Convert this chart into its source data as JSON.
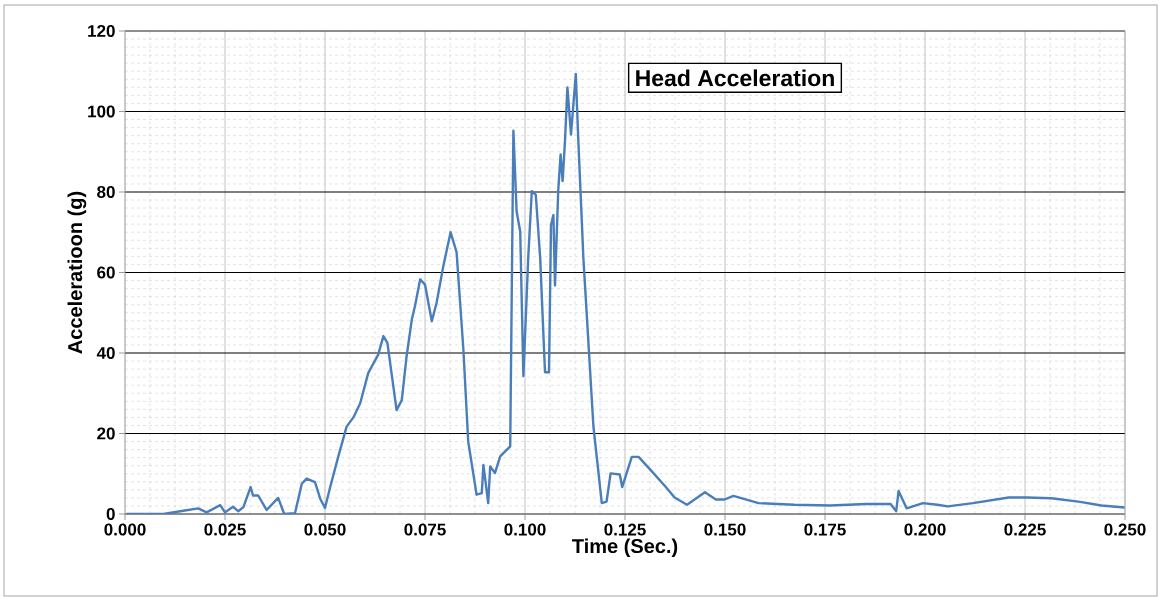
{
  "chart_data": {
    "type": "line",
    "title": "Head Acceleration",
    "xlabel": "Time (Sec.)",
    "ylabel": "Acceleratioon (g)",
    "x": [
      0.0004,
      0.0096,
      0.0146,
      0.0183,
      0.0204,
      0.0238,
      0.025,
      0.027,
      0.0283,
      0.0296,
      0.0314,
      0.032,
      0.0333,
      0.0354,
      0.0383,
      0.0398,
      0.0425,
      0.0442,
      0.0454,
      0.0475,
      0.0488,
      0.05,
      0.0513,
      0.0533,
      0.0554,
      0.0571,
      0.0588,
      0.0608,
      0.0633,
      0.0646,
      0.0656,
      0.0679,
      0.0692,
      0.0704,
      0.0717,
      0.0725,
      0.0738,
      0.075,
      0.0767,
      0.0779,
      0.0796,
      0.0814,
      0.0829,
      0.0846,
      0.0858,
      0.0879,
      0.0892,
      0.0896,
      0.0908,
      0.0913,
      0.0925,
      0.0938,
      0.0963,
      0.0971,
      0.0979,
      0.0988,
      0.0996,
      0.1008,
      0.1017,
      0.1027,
      0.1038,
      0.105,
      0.106,
      0.1065,
      0.1071,
      0.1075,
      0.1083,
      0.1089,
      0.1094,
      0.11,
      0.1106,
      0.1115,
      0.1127,
      0.1133,
      0.1146,
      0.1171,
      0.1192,
      0.1204,
      0.1214,
      0.1237,
      0.1243,
      0.1267,
      0.1284,
      0.1316,
      0.1352,
      0.1374,
      0.1405,
      0.145,
      0.1477,
      0.1499,
      0.1521,
      0.1584,
      0.1673,
      0.1763,
      0.1852,
      0.1914,
      0.1928,
      0.1934,
      0.1954,
      0.1995,
      0.2031,
      0.2057,
      0.212,
      0.2209,
      0.2254,
      0.2316,
      0.2388,
      0.2441,
      0.2499
    ],
    "series": [
      {
        "color": "#4a7ebb",
        "values": [
          0,
          0,
          0.8,
          1.4,
          0.4,
          2.2,
          0.4,
          1.8,
          0.7,
          1.7,
          6.7,
          4.6,
          4.6,
          1,
          4,
          0,
          0.2,
          7.5,
          8.8,
          7.9,
          3.8,
          1.5,
          6.7,
          14.2,
          21.7,
          24,
          27.5,
          35,
          39.6,
          44.2,
          42.5,
          25.8,
          28.3,
          39.2,
          48.3,
          51.7,
          58.3,
          57,
          47.9,
          52.5,
          61.7,
          70,
          65,
          40.8,
          18,
          4.8,
          5.2,
          12.2,
          2.7,
          11.8,
          10.2,
          14.3,
          16.8,
          95.2,
          75.2,
          70.2,
          34.3,
          63.5,
          80.2,
          79.3,
          63.5,
          35.2,
          35.2,
          71.8,
          74.3,
          56.8,
          80.2,
          89.3,
          82.7,
          92.7,
          106,
          94.3,
          109.3,
          93.5,
          63.5,
          21.8,
          2.7,
          3.1,
          10.1,
          9.8,
          6.7,
          14.2,
          14.2,
          10.7,
          6.7,
          4.1,
          2.3,
          5.4,
          3.6,
          3.6,
          4.5,
          2.7,
          2.3,
          2.1,
          2.5,
          2.5,
          0.7,
          5.7,
          1.4,
          2.7,
          2.3,
          1.9,
          2.7,
          4.1,
          4.1,
          3.9,
          3,
          2.1,
          1.6
        ]
      }
    ],
    "xlim": [
      0,
      0.25
    ],
    "ylim": [
      0,
      120
    ],
    "xticks": [
      {
        "value": 0,
        "label": "0.000"
      },
      {
        "value": 0.025,
        "label": "0.025"
      },
      {
        "value": 0.05,
        "label": "0.050"
      },
      {
        "value": 0.075,
        "label": "0.075"
      },
      {
        "value": 0.1,
        "label": "0.100"
      },
      {
        "value": 0.125,
        "label": "0.125"
      },
      {
        "value": 0.15,
        "label": "0.150"
      },
      {
        "value": 0.175,
        "label": "0.175"
      },
      {
        "value": 0.2,
        "label": "0.200"
      },
      {
        "value": 0.225,
        "label": "0.225"
      },
      {
        "value": 0.25,
        "label": "0.250"
      }
    ],
    "yticks": [
      0,
      20,
      40,
      60,
      80,
      100,
      120
    ],
    "grid": true
  }
}
